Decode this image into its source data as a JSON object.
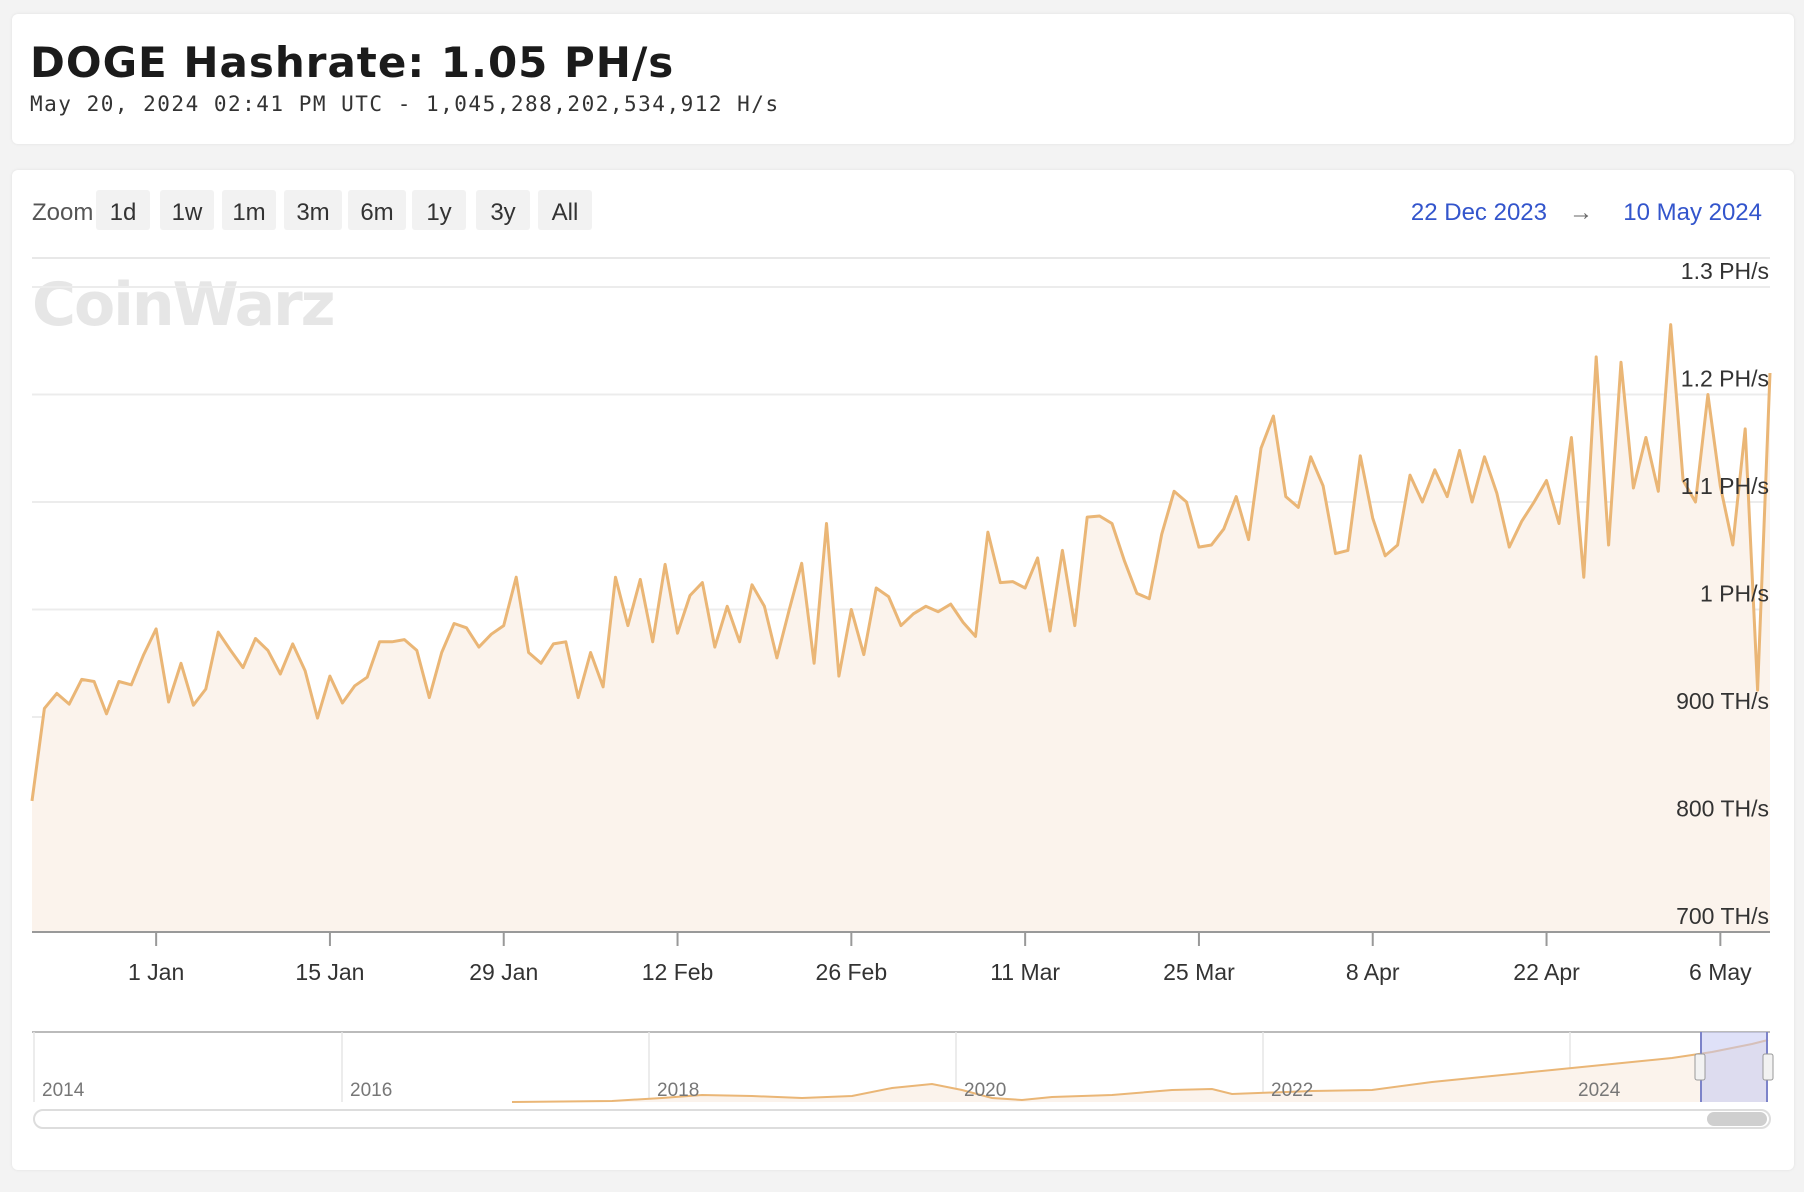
{
  "header": {
    "title": "DOGE Hashrate: 1.05 PH/s",
    "subtitle": "May 20, 2024 02:41 PM UTC - 1,045,288,202,534,912 H/s"
  },
  "toolbar": {
    "zoom_label": "Zoom",
    "buttons": [
      "1d",
      "1w",
      "1m",
      "3m",
      "6m",
      "1y",
      "3y",
      "All"
    ],
    "range_from": "22 Dec 2023",
    "range_arrow": "→",
    "range_to": "10 May 2024"
  },
  "watermark": "CoinWarz",
  "colors": {
    "line": "#eab676",
    "fill": "#fbf3ec",
    "navigator_mask": "#c5c9f3"
  },
  "chart_data": {
    "type": "line",
    "title": "DOGE Hashrate: 1.05 PH/s",
    "x_range": [
      "2023-12-22",
      "2024-05-10"
    ],
    "ylim": [
      700,
      1300
    ],
    "y_unit": "TH/s",
    "yticks": [
      {
        "value": 700,
        "label": "700 TH/s"
      },
      {
        "value": 800,
        "label": "800 TH/s"
      },
      {
        "value": 900,
        "label": "900 TH/s"
      },
      {
        "value": 1000,
        "label": "1 PH/s"
      },
      {
        "value": 1100,
        "label": "1.1 PH/s"
      },
      {
        "value": 1200,
        "label": "1.2 PH/s"
      },
      {
        "value": 1300,
        "label": "1.3 PH/s"
      }
    ],
    "xticks": [
      {
        "date": "2024-01-01",
        "label": "1 Jan"
      },
      {
        "date": "2024-01-15",
        "label": "15 Jan"
      },
      {
        "date": "2024-01-29",
        "label": "29 Jan"
      },
      {
        "date": "2024-02-12",
        "label": "12 Feb"
      },
      {
        "date": "2024-02-26",
        "label": "26 Feb"
      },
      {
        "date": "2024-03-11",
        "label": "11 Mar"
      },
      {
        "date": "2024-03-25",
        "label": "25 Mar"
      },
      {
        "date": "2024-04-08",
        "label": "8 Apr"
      },
      {
        "date": "2024-04-22",
        "label": "22 Apr"
      },
      {
        "date": "2024-05-06",
        "label": "6 May"
      }
    ],
    "grid": true,
    "points": [
      [
        "2023-12-22",
        822
      ],
      [
        "2023-12-23",
        908
      ],
      [
        "2023-12-24",
        922
      ],
      [
        "2023-12-25",
        912
      ],
      [
        "2023-12-26",
        935
      ],
      [
        "2023-12-27",
        933
      ],
      [
        "2023-12-28",
        903
      ],
      [
        "2023-12-29",
        933
      ],
      [
        "2023-12-30",
        930
      ],
      [
        "2023-12-31",
        958
      ],
      [
        "2024-01-01",
        982
      ],
      [
        "2024-01-02",
        914
      ],
      [
        "2024-01-03",
        950
      ],
      [
        "2024-01-04",
        911
      ],
      [
        "2024-01-05",
        926
      ],
      [
        "2024-01-06",
        979
      ],
      [
        "2024-01-07",
        962
      ],
      [
        "2024-01-08",
        946
      ],
      [
        "2024-01-09",
        973
      ],
      [
        "2024-01-10",
        962
      ],
      [
        "2024-01-11",
        940
      ],
      [
        "2024-01-12",
        968
      ],
      [
        "2024-01-13",
        943
      ],
      [
        "2024-01-14",
        899
      ],
      [
        "2024-01-15",
        938
      ],
      [
        "2024-01-16",
        913
      ],
      [
        "2024-01-17",
        929
      ],
      [
        "2024-01-18",
        937
      ],
      [
        "2024-01-19",
        970
      ],
      [
        "2024-01-20",
        970
      ],
      [
        "2024-01-21",
        972
      ],
      [
        "2024-01-22",
        962
      ],
      [
        "2024-01-23",
        918
      ],
      [
        "2024-01-24",
        960
      ],
      [
        "2024-01-25",
        987
      ],
      [
        "2024-01-26",
        983
      ],
      [
        "2024-01-27",
        965
      ],
      [
        "2024-01-28",
        977
      ],
      [
        "2024-01-29",
        985
      ],
      [
        "2024-01-30",
        1030
      ],
      [
        "2024-01-31",
        960
      ],
      [
        "2024-02-01",
        950
      ],
      [
        "2024-02-02",
        968
      ],
      [
        "2024-02-03",
        970
      ],
      [
        "2024-02-04",
        918
      ],
      [
        "2024-02-05",
        960
      ],
      [
        "2024-02-06",
        928
      ],
      [
        "2024-02-07",
        1030
      ],
      [
        "2024-02-08",
        985
      ],
      [
        "2024-02-09",
        1028
      ],
      [
        "2024-02-10",
        970
      ],
      [
        "2024-02-11",
        1042
      ],
      [
        "2024-02-12",
        978
      ],
      [
        "2024-02-13",
        1013
      ],
      [
        "2024-02-14",
        1025
      ],
      [
        "2024-02-15",
        965
      ],
      [
        "2024-02-16",
        1003
      ],
      [
        "2024-02-17",
        970
      ],
      [
        "2024-02-18",
        1023
      ],
      [
        "2024-02-19",
        1003
      ],
      [
        "2024-02-20",
        955
      ],
      [
        "2024-02-21",
        1000
      ],
      [
        "2024-02-22",
        1043
      ],
      [
        "2024-02-23",
        950
      ],
      [
        "2024-02-24",
        1080
      ],
      [
        "2024-02-25",
        938
      ],
      [
        "2024-02-26",
        1000
      ],
      [
        "2024-02-27",
        958
      ],
      [
        "2024-02-28",
        1020
      ],
      [
        "2024-02-29",
        1012
      ],
      [
        "2024-03-01",
        985
      ],
      [
        "2024-03-02",
        996
      ],
      [
        "2024-03-03",
        1003
      ],
      [
        "2024-03-04",
        998
      ],
      [
        "2024-03-05",
        1005
      ],
      [
        "2024-03-06",
        988
      ],
      [
        "2024-03-07",
        975
      ],
      [
        "2024-03-08",
        1072
      ],
      [
        "2024-03-09",
        1025
      ],
      [
        "2024-03-10",
        1026
      ],
      [
        "2024-03-11",
        1020
      ],
      [
        "2024-03-12",
        1048
      ],
      [
        "2024-03-13",
        980
      ],
      [
        "2024-03-14",
        1055
      ],
      [
        "2024-03-15",
        985
      ],
      [
        "2024-03-16",
        1086
      ],
      [
        "2024-03-17",
        1087
      ],
      [
        "2024-03-18",
        1080
      ],
      [
        "2024-03-19",
        1045
      ],
      [
        "2024-03-20",
        1015
      ],
      [
        "2024-03-21",
        1010
      ],
      [
        "2024-03-22",
        1070
      ],
      [
        "2024-03-23",
        1110
      ],
      [
        "2024-03-24",
        1100
      ],
      [
        "2024-03-25",
        1058
      ],
      [
        "2024-03-26",
        1060
      ],
      [
        "2024-03-27",
        1075
      ],
      [
        "2024-03-28",
        1105
      ],
      [
        "2024-03-29",
        1065
      ],
      [
        "2024-03-30",
        1150
      ],
      [
        "2024-03-31",
        1180
      ],
      [
        "2024-04-01",
        1105
      ],
      [
        "2024-04-02",
        1095
      ],
      [
        "2024-04-03",
        1142
      ],
      [
        "2024-04-04",
        1115
      ],
      [
        "2024-04-05",
        1052
      ],
      [
        "2024-04-06",
        1055
      ],
      [
        "2024-04-07",
        1143
      ],
      [
        "2024-04-08",
        1085
      ],
      [
        "2024-04-09",
        1050
      ],
      [
        "2024-04-10",
        1060
      ],
      [
        "2024-04-11",
        1125
      ],
      [
        "2024-04-12",
        1100
      ],
      [
        "2024-04-13",
        1130
      ],
      [
        "2024-04-14",
        1105
      ],
      [
        "2024-04-15",
        1148
      ],
      [
        "2024-04-16",
        1100
      ],
      [
        "2024-04-17",
        1142
      ],
      [
        "2024-04-18",
        1108
      ],
      [
        "2024-04-19",
        1058
      ],
      [
        "2024-04-20",
        1082
      ],
      [
        "2024-04-21",
        1100
      ],
      [
        "2024-04-22",
        1120
      ],
      [
        "2024-04-23",
        1080
      ],
      [
        "2024-04-24",
        1160
      ],
      [
        "2024-04-25",
        1030
      ],
      [
        "2024-04-26",
        1235
      ],
      [
        "2024-04-27",
        1060
      ],
      [
        "2024-04-28",
        1230
      ],
      [
        "2024-04-29",
        1113
      ],
      [
        "2024-04-30",
        1160
      ],
      [
        "2024-05-01",
        1110
      ],
      [
        "2024-05-02",
        1265
      ],
      [
        "2024-05-03",
        1120
      ],
      [
        "2024-05-04",
        1100
      ],
      [
        "2024-05-05",
        1200
      ],
      [
        "2024-05-06",
        1115
      ],
      [
        "2024-05-07",
        1060
      ],
      [
        "2024-05-08",
        1168
      ],
      [
        "2024-05-09",
        925
      ],
      [
        "2024-05-10",
        1220
      ]
    ]
  },
  "navigator": {
    "year_labels": [
      "2014",
      "2016",
      "2018",
      "2020",
      "2022",
      "2024"
    ]
  }
}
